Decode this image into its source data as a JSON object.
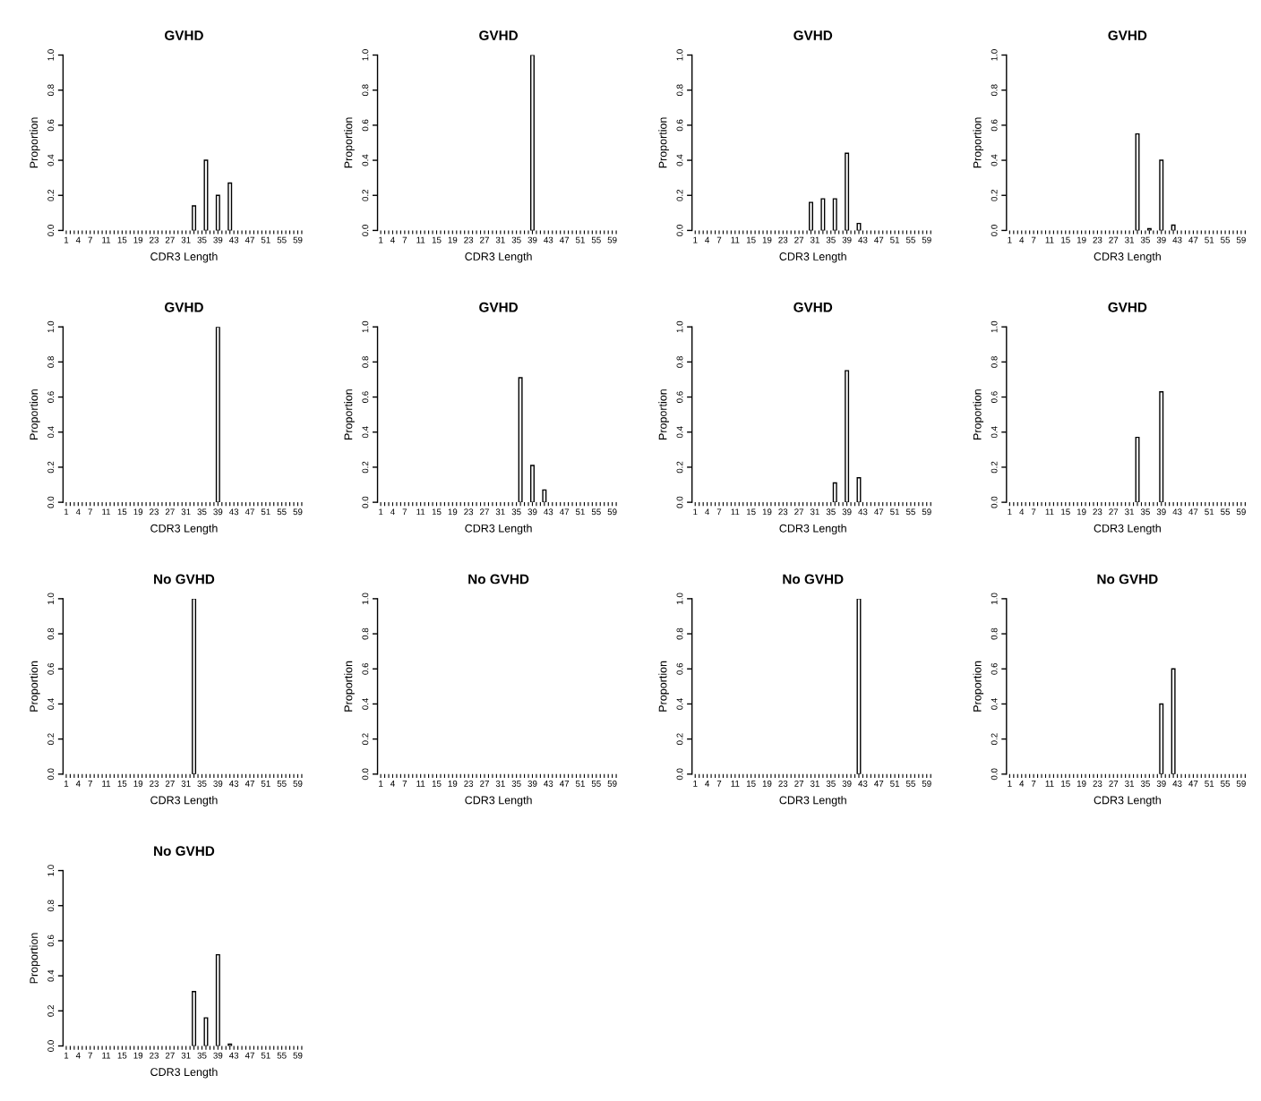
{
  "chart_data": [
    {
      "type": "bar",
      "title": "GVHD",
      "xlabel": "CDR3 Length",
      "ylabel": "Proportion",
      "color": "#ffffff",
      "ylim": [
        0,
        1
      ],
      "yticks": [
        {
          "value": 0,
          "label": "0.0"
        },
        {
          "value": 0.2,
          "label": "0.2"
        },
        {
          "value": 0.4,
          "label": "0.4"
        },
        {
          "value": 0.6,
          "label": "0.6"
        },
        {
          "value": 0.8,
          "label": "0.8"
        },
        {
          "value": 1,
          "label": "1.0"
        }
      ],
      "categories": [
        "1",
        null,
        null,
        "4",
        null,
        null,
        "7",
        null,
        null,
        null,
        "11",
        null,
        null,
        null,
        "15",
        null,
        null,
        null,
        "19",
        null,
        null,
        null,
        "23",
        null,
        null,
        null,
        "27",
        null,
        null,
        null,
        "31",
        null,
        null,
        null,
        "35",
        null,
        null,
        null,
        "39",
        null,
        null,
        null,
        "43",
        null,
        null,
        null,
        "47",
        null,
        null,
        null,
        "51",
        null,
        null,
        null,
        "55",
        null,
        null,
        null,
        "59",
        null
      ],
      "values": [
        0,
        0,
        0,
        0,
        0,
        0,
        0,
        0,
        0,
        0,
        0,
        0,
        0,
        0,
        0,
        0,
        0,
        0,
        0,
        0,
        0,
        0,
        0,
        0,
        0,
        0,
        0,
        0,
        0,
        0,
        0,
        0,
        0.14,
        0,
        0,
        0.4,
        0,
        0,
        0.2,
        0,
        0,
        0.27,
        0,
        0,
        0,
        0,
        0,
        0,
        0,
        0,
        0,
        0,
        0,
        0,
        0,
        0,
        0,
        0,
        0,
        0
      ]
    },
    {
      "type": "bar",
      "title": "GVHD",
      "xlabel": "CDR3 Length",
      "ylabel": "Proportion",
      "color": "#ffffff",
      "ylim": [
        0,
        1
      ],
      "yticks": [
        {
          "value": 0,
          "label": "0.0"
        },
        {
          "value": 0.2,
          "label": "0.2"
        },
        {
          "value": 0.4,
          "label": "0.4"
        },
        {
          "value": 0.6,
          "label": "0.6"
        },
        {
          "value": 0.8,
          "label": "0.8"
        },
        {
          "value": 1,
          "label": "1.0"
        }
      ],
      "categories": [
        "1",
        null,
        null,
        "4",
        null,
        null,
        "7",
        null,
        null,
        null,
        "11",
        null,
        null,
        null,
        "15",
        null,
        null,
        null,
        "19",
        null,
        null,
        null,
        "23",
        null,
        null,
        null,
        "27",
        null,
        null,
        null,
        "31",
        null,
        null,
        null,
        "35",
        null,
        null,
        null,
        "39",
        null,
        null,
        null,
        "43",
        null,
        null,
        null,
        "47",
        null,
        null,
        null,
        "51",
        null,
        null,
        null,
        "55",
        null,
        null,
        null,
        "59",
        null
      ],
      "values": [
        0,
        0,
        0,
        0,
        0,
        0,
        0,
        0,
        0,
        0,
        0,
        0,
        0,
        0,
        0,
        0,
        0,
        0,
        0,
        0,
        0,
        0,
        0,
        0,
        0,
        0,
        0,
        0,
        0,
        0,
        0,
        0,
        0,
        0,
        0,
        0,
        0,
        0,
        1,
        0,
        0,
        0,
        0,
        0,
        0,
        0,
        0,
        0,
        0,
        0,
        0,
        0,
        0,
        0,
        0,
        0,
        0,
        0,
        0,
        0
      ]
    },
    {
      "type": "bar",
      "title": "GVHD",
      "xlabel": "CDR3 Length",
      "ylabel": "Proportion",
      "color": "#ffffff",
      "ylim": [
        0,
        1
      ],
      "yticks": [
        {
          "value": 0,
          "label": "0.0"
        },
        {
          "value": 0.2,
          "label": "0.2"
        },
        {
          "value": 0.4,
          "label": "0.4"
        },
        {
          "value": 0.6,
          "label": "0.6"
        },
        {
          "value": 0.8,
          "label": "0.8"
        },
        {
          "value": 1,
          "label": "1.0"
        }
      ],
      "categories": [
        "1",
        null,
        null,
        "4",
        null,
        null,
        "7",
        null,
        null,
        null,
        "11",
        null,
        null,
        null,
        "15",
        null,
        null,
        null,
        "19",
        null,
        null,
        null,
        "23",
        null,
        null,
        null,
        "27",
        null,
        null,
        null,
        "31",
        null,
        null,
        null,
        "35",
        null,
        null,
        null,
        "39",
        null,
        null,
        null,
        "43",
        null,
        null,
        null,
        "47",
        null,
        null,
        null,
        "51",
        null,
        null,
        null,
        "55",
        null,
        null,
        null,
        "59",
        null
      ],
      "values": [
        0,
        0,
        0,
        0,
        0,
        0,
        0,
        0,
        0,
        0,
        0,
        0,
        0,
        0,
        0,
        0,
        0,
        0,
        0,
        0,
        0,
        0,
        0,
        0,
        0,
        0,
        0,
        0,
        0,
        0.16,
        0,
        0,
        0.18,
        0,
        0,
        0.18,
        0,
        0,
        0.44,
        0,
        0,
        0.04,
        0,
        0,
        0,
        0,
        0,
        0,
        0,
        0,
        0,
        0,
        0,
        0,
        0,
        0,
        0,
        0,
        0,
        0
      ]
    },
    {
      "type": "bar",
      "title": "GVHD",
      "xlabel": "CDR3 Length",
      "ylabel": "Proportion",
      "color": "#ffffff",
      "ylim": [
        0,
        1
      ],
      "yticks": [
        {
          "value": 0,
          "label": "0.0"
        },
        {
          "value": 0.2,
          "label": "0.2"
        },
        {
          "value": 0.4,
          "label": "0.4"
        },
        {
          "value": 0.6,
          "label": "0.6"
        },
        {
          "value": 0.8,
          "label": "0.8"
        },
        {
          "value": 1,
          "label": "1.0"
        }
      ],
      "categories": [
        "1",
        null,
        null,
        "4",
        null,
        null,
        "7",
        null,
        null,
        null,
        "11",
        null,
        null,
        null,
        "15",
        null,
        null,
        null,
        "19",
        null,
        null,
        null,
        "23",
        null,
        null,
        null,
        "27",
        null,
        null,
        null,
        "31",
        null,
        null,
        null,
        "35",
        null,
        null,
        null,
        "39",
        null,
        null,
        null,
        "43",
        null,
        null,
        null,
        "47",
        null,
        null,
        null,
        "51",
        null,
        null,
        null,
        "55",
        null,
        null,
        null,
        "59",
        null
      ],
      "values": [
        0,
        0,
        0,
        0,
        0,
        0,
        0,
        0,
        0,
        0,
        0,
        0,
        0,
        0,
        0,
        0,
        0,
        0,
        0,
        0,
        0,
        0,
        0,
        0,
        0,
        0,
        0,
        0,
        0,
        0,
        0,
        0,
        0.55,
        0,
        0,
        0.01,
        0,
        0,
        0.4,
        0,
        0,
        0.03,
        0,
        0,
        0,
        0,
        0,
        0,
        0,
        0,
        0,
        0,
        0,
        0,
        0,
        0,
        0,
        0,
        0,
        0
      ]
    },
    {
      "type": "bar",
      "title": "GVHD",
      "xlabel": "CDR3 Length",
      "ylabel": "Proportion",
      "color": "#ffffff",
      "ylim": [
        0,
        1
      ],
      "yticks": [
        {
          "value": 0,
          "label": "0.0"
        },
        {
          "value": 0.2,
          "label": "0.2"
        },
        {
          "value": 0.4,
          "label": "0.4"
        },
        {
          "value": 0.6,
          "label": "0.6"
        },
        {
          "value": 0.8,
          "label": "0.8"
        },
        {
          "value": 1,
          "label": "1.0"
        }
      ],
      "categories": [
        "1",
        null,
        null,
        "4",
        null,
        null,
        "7",
        null,
        null,
        null,
        "11",
        null,
        null,
        null,
        "15",
        null,
        null,
        null,
        "19",
        null,
        null,
        null,
        "23",
        null,
        null,
        null,
        "27",
        null,
        null,
        null,
        "31",
        null,
        null,
        null,
        "35",
        null,
        null,
        null,
        "39",
        null,
        null,
        null,
        "43",
        null,
        null,
        null,
        "47",
        null,
        null,
        null,
        "51",
        null,
        null,
        null,
        "55",
        null,
        null,
        null,
        "59",
        null
      ],
      "values": [
        0,
        0,
        0,
        0,
        0,
        0,
        0,
        0,
        0,
        0,
        0,
        0,
        0,
        0,
        0,
        0,
        0,
        0,
        0,
        0,
        0,
        0,
        0,
        0,
        0,
        0,
        0,
        0,
        0,
        0,
        0,
        0,
        0,
        0,
        0,
        0,
        0,
        0,
        1,
        0,
        0,
        0,
        0,
        0,
        0,
        0,
        0,
        0,
        0,
        0,
        0,
        0,
        0,
        0,
        0,
        0,
        0,
        0,
        0,
        0
      ]
    },
    {
      "type": "bar",
      "title": "GVHD",
      "xlabel": "CDR3 Length",
      "ylabel": "Proportion",
      "color": "#ffffff",
      "ylim": [
        0,
        1
      ],
      "yticks": [
        {
          "value": 0,
          "label": "0.0"
        },
        {
          "value": 0.2,
          "label": "0.2"
        },
        {
          "value": 0.4,
          "label": "0.4"
        },
        {
          "value": 0.6,
          "label": "0.6"
        },
        {
          "value": 0.8,
          "label": "0.8"
        },
        {
          "value": 1,
          "label": "1.0"
        }
      ],
      "categories": [
        "1",
        null,
        null,
        "4",
        null,
        null,
        "7",
        null,
        null,
        null,
        "11",
        null,
        null,
        null,
        "15",
        null,
        null,
        null,
        "19",
        null,
        null,
        null,
        "23",
        null,
        null,
        null,
        "27",
        null,
        null,
        null,
        "31",
        null,
        null,
        null,
        "35",
        null,
        null,
        null,
        "39",
        null,
        null,
        null,
        "43",
        null,
        null,
        null,
        "47",
        null,
        null,
        null,
        "51",
        null,
        null,
        null,
        "55",
        null,
        null,
        null,
        "59",
        null
      ],
      "values": [
        0,
        0,
        0,
        0,
        0,
        0,
        0,
        0,
        0,
        0,
        0,
        0,
        0,
        0,
        0,
        0,
        0,
        0,
        0,
        0,
        0,
        0,
        0,
        0,
        0,
        0,
        0,
        0,
        0,
        0,
        0,
        0,
        0,
        0,
        0,
        0.71,
        0,
        0,
        0.21,
        0,
        0,
        0.07,
        0,
        0,
        0,
        0,
        0,
        0,
        0,
        0,
        0,
        0,
        0,
        0,
        0,
        0,
        0,
        0,
        0,
        0
      ]
    },
    {
      "type": "bar",
      "title": "GVHD",
      "xlabel": "CDR3 Length",
      "ylabel": "Proportion",
      "color": "#ffffff",
      "ylim": [
        0,
        1
      ],
      "yticks": [
        {
          "value": 0,
          "label": "0.0"
        },
        {
          "value": 0.2,
          "label": "0.2"
        },
        {
          "value": 0.4,
          "label": "0.4"
        },
        {
          "value": 0.6,
          "label": "0.6"
        },
        {
          "value": 0.8,
          "label": "0.8"
        },
        {
          "value": 1,
          "label": "1.0"
        }
      ],
      "categories": [
        "1",
        null,
        null,
        "4",
        null,
        null,
        "7",
        null,
        null,
        null,
        "11",
        null,
        null,
        null,
        "15",
        null,
        null,
        null,
        "19",
        null,
        null,
        null,
        "23",
        null,
        null,
        null,
        "27",
        null,
        null,
        null,
        "31",
        null,
        null,
        null,
        "35",
        null,
        null,
        null,
        "39",
        null,
        null,
        null,
        "43",
        null,
        null,
        null,
        "47",
        null,
        null,
        null,
        "51",
        null,
        null,
        null,
        "55",
        null,
        null,
        null,
        "59",
        null
      ],
      "values": [
        0,
        0,
        0,
        0,
        0,
        0,
        0,
        0,
        0,
        0,
        0,
        0,
        0,
        0,
        0,
        0,
        0,
        0,
        0,
        0,
        0,
        0,
        0,
        0,
        0,
        0,
        0,
        0,
        0,
        0,
        0,
        0,
        0,
        0,
        0,
        0.11,
        0,
        0,
        0.75,
        0,
        0,
        0.14,
        0,
        0,
        0,
        0,
        0,
        0,
        0,
        0,
        0,
        0,
        0,
        0,
        0,
        0,
        0,
        0,
        0,
        0
      ]
    },
    {
      "type": "bar",
      "title": "GVHD",
      "xlabel": "CDR3 Length",
      "ylabel": "Proportion",
      "color": "#ffffff",
      "ylim": [
        0,
        1
      ],
      "yticks": [
        {
          "value": 0,
          "label": "0.0"
        },
        {
          "value": 0.2,
          "label": "0.2"
        },
        {
          "value": 0.4,
          "label": "0.4"
        },
        {
          "value": 0.6,
          "label": "0.6"
        },
        {
          "value": 0.8,
          "label": "0.8"
        },
        {
          "value": 1,
          "label": "1.0"
        }
      ],
      "categories": [
        "1",
        null,
        null,
        "4",
        null,
        null,
        "7",
        null,
        null,
        null,
        "11",
        null,
        null,
        null,
        "15",
        null,
        null,
        null,
        "19",
        null,
        null,
        null,
        "23",
        null,
        null,
        null,
        "27",
        null,
        null,
        null,
        "31",
        null,
        null,
        null,
        "35",
        null,
        null,
        null,
        "39",
        null,
        null,
        null,
        "43",
        null,
        null,
        null,
        "47",
        null,
        null,
        null,
        "51",
        null,
        null,
        null,
        "55",
        null,
        null,
        null,
        "59",
        null
      ],
      "values": [
        0,
        0,
        0,
        0,
        0,
        0,
        0,
        0,
        0,
        0,
        0,
        0,
        0,
        0,
        0,
        0,
        0,
        0,
        0,
        0,
        0,
        0,
        0,
        0,
        0,
        0,
        0,
        0,
        0,
        0,
        0,
        0,
        0.37,
        0,
        0,
        0,
        0,
        0,
        0.63,
        0,
        0,
        0,
        0,
        0,
        0,
        0,
        0,
        0,
        0,
        0,
        0,
        0,
        0,
        0,
        0,
        0,
        0,
        0,
        0,
        0
      ]
    },
    {
      "type": "bar",
      "title": "No GVHD",
      "xlabel": "CDR3 Length",
      "ylabel": "Proportion",
      "color": "#ffffff",
      "ylim": [
        0,
        1
      ],
      "yticks": [
        {
          "value": 0,
          "label": "0.0"
        },
        {
          "value": 0.2,
          "label": "0.2"
        },
        {
          "value": 0.4,
          "label": "0.4"
        },
        {
          "value": 0.6,
          "label": "0.6"
        },
        {
          "value": 0.8,
          "label": "0.8"
        },
        {
          "value": 1,
          "label": "1.0"
        }
      ],
      "categories": [
        "1",
        null,
        null,
        "4",
        null,
        null,
        "7",
        null,
        null,
        null,
        "11",
        null,
        null,
        null,
        "15",
        null,
        null,
        null,
        "19",
        null,
        null,
        null,
        "23",
        null,
        null,
        null,
        "27",
        null,
        null,
        null,
        "31",
        null,
        null,
        null,
        "35",
        null,
        null,
        null,
        "39",
        null,
        null,
        null,
        "43",
        null,
        null,
        null,
        "47",
        null,
        null,
        null,
        "51",
        null,
        null,
        null,
        "55",
        null,
        null,
        null,
        "59",
        null
      ],
      "values": [
        0,
        0,
        0,
        0,
        0,
        0,
        0,
        0,
        0,
        0,
        0,
        0,
        0,
        0,
        0,
        0,
        0,
        0,
        0,
        0,
        0,
        0,
        0,
        0,
        0,
        0,
        0,
        0,
        0,
        0,
        0,
        0,
        1,
        0,
        0,
        0,
        0,
        0,
        0,
        0,
        0,
        0,
        0,
        0,
        0,
        0,
        0,
        0,
        0,
        0,
        0,
        0,
        0,
        0,
        0,
        0,
        0,
        0,
        0,
        0
      ]
    },
    {
      "type": "bar",
      "title": "No GVHD",
      "xlabel": "CDR3 Length",
      "ylabel": "Proportion",
      "ylim": [
        0,
        1
      ],
      "yticks": [
        {
          "value": 0,
          "label": "0.0"
        },
        {
          "value": 0.2,
          "label": "0.2"
        },
        {
          "value": 0.4,
          "label": "0.4"
        },
        {
          "value": 0.6,
          "label": "0.6"
        },
        {
          "value": 0.8,
          "label": "0.8"
        },
        {
          "value": 1,
          "label": "1.0"
        }
      ],
      "categories": [
        "1",
        null,
        null,
        "4",
        null,
        null,
        "7",
        null,
        null,
        null,
        "11",
        null,
        null,
        null,
        "15",
        null,
        null,
        null,
        "19",
        null,
        null,
        null,
        "23",
        null,
        null,
        null,
        "27",
        null,
        null,
        null,
        "31",
        null,
        null,
        null,
        "35",
        null,
        null,
        null,
        "39",
        null,
        null,
        null,
        "43",
        null,
        null,
        null,
        "47",
        null,
        null,
        null,
        "51",
        null,
        null,
        null,
        "55",
        null,
        null,
        null,
        "59",
        null
      ],
      "values": [
        0,
        0,
        0,
        0,
        0,
        0,
        0,
        0,
        0,
        0,
        0,
        0,
        0,
        0,
        0,
        0,
        0,
        0,
        0,
        0,
        0,
        0,
        0,
        0,
        0,
        0,
        0,
        0,
        0,
        0,
        0,
        0,
        0,
        0,
        0,
        0,
        0,
        0,
        0,
        0,
        0,
        0,
        0,
        0,
        0,
        0,
        0,
        0,
        0,
        0,
        0,
        0,
        0,
        0,
        0,
        0,
        0,
        0,
        0,
        0
      ]
    },
    {
      "type": "bar",
      "title": "No GVHD",
      "xlabel": "CDR3 Length",
      "ylabel": "Proportion",
      "color": "#ffffff",
      "ylim": [
        0,
        1
      ],
      "yticks": [
        {
          "value": 0,
          "label": "0.0"
        },
        {
          "value": 0.2,
          "label": "0.2"
        },
        {
          "value": 0.4,
          "label": "0.4"
        },
        {
          "value": 0.6,
          "label": "0.6"
        },
        {
          "value": 0.8,
          "label": "0.8"
        },
        {
          "value": 1,
          "label": "1.0"
        }
      ],
      "categories": [
        "1",
        null,
        null,
        "4",
        null,
        null,
        "7",
        null,
        null,
        null,
        "11",
        null,
        null,
        null,
        "15",
        null,
        null,
        null,
        "19",
        null,
        null,
        null,
        "23",
        null,
        null,
        null,
        "27",
        null,
        null,
        null,
        "31",
        null,
        null,
        null,
        "35",
        null,
        null,
        null,
        "39",
        null,
        null,
        null,
        "43",
        null,
        null,
        null,
        "47",
        null,
        null,
        null,
        "51",
        null,
        null,
        null,
        "55",
        null,
        null,
        null,
        "59",
        null
      ],
      "values": [
        0,
        0,
        0,
        0,
        0,
        0,
        0,
        0,
        0,
        0,
        0,
        0,
        0,
        0,
        0,
        0,
        0,
        0,
        0,
        0,
        0,
        0,
        0,
        0,
        0,
        0,
        0,
        0,
        0,
        0,
        0,
        0,
        0,
        0,
        0,
        0,
        0,
        0,
        0,
        0,
        0,
        1,
        0,
        0,
        0,
        0,
        0,
        0,
        0,
        0,
        0,
        0,
        0,
        0,
        0,
        0,
        0,
        0,
        0,
        0
      ]
    },
    {
      "type": "bar",
      "title": "No GVHD",
      "xlabel": "CDR3 Length",
      "ylabel": "Proportion",
      "color": "#ffffff",
      "ylim": [
        0,
        1
      ],
      "yticks": [
        {
          "value": 0,
          "label": "0.0"
        },
        {
          "value": 0.2,
          "label": "0.2"
        },
        {
          "value": 0.4,
          "label": "0.4"
        },
        {
          "value": 0.6,
          "label": "0.6"
        },
        {
          "value": 0.8,
          "label": "0.8"
        },
        {
          "value": 1,
          "label": "1.0"
        }
      ],
      "categories": [
        "1",
        null,
        null,
        "4",
        null,
        null,
        "7",
        null,
        null,
        null,
        "11",
        null,
        null,
        null,
        "15",
        null,
        null,
        null,
        "19",
        null,
        null,
        null,
        "23",
        null,
        null,
        null,
        "27",
        null,
        null,
        null,
        "31",
        null,
        null,
        null,
        "35",
        null,
        null,
        null,
        "39",
        null,
        null,
        null,
        "43",
        null,
        null,
        null,
        "47",
        null,
        null,
        null,
        "51",
        null,
        null,
        null,
        "55",
        null,
        null,
        null,
        "59",
        null
      ],
      "values": [
        0,
        0,
        0,
        0,
        0,
        0,
        0,
        0,
        0,
        0,
        0,
        0,
        0,
        0,
        0,
        0,
        0,
        0,
        0,
        0,
        0,
        0,
        0,
        0,
        0,
        0,
        0,
        0,
        0,
        0,
        0,
        0,
        0,
        0,
        0,
        0,
        0,
        0,
        0.4,
        0,
        0,
        0.6,
        0,
        0,
        0,
        0,
        0,
        0,
        0,
        0,
        0,
        0,
        0,
        0,
        0,
        0,
        0,
        0,
        0,
        0
      ]
    },
    {
      "type": "bar",
      "title": "No GVHD",
      "xlabel": "CDR3 Length",
      "ylabel": "Proportion",
      "color": "#ffffff",
      "ylim": [
        0,
        1
      ],
      "yticks": [
        {
          "value": 0,
          "label": "0.0"
        },
        {
          "value": 0.2,
          "label": "0.2"
        },
        {
          "value": 0.4,
          "label": "0.4"
        },
        {
          "value": 0.6,
          "label": "0.6"
        },
        {
          "value": 0.8,
          "label": "0.8"
        },
        {
          "value": 1,
          "label": "1.0"
        }
      ],
      "categories": [
        "1",
        null,
        null,
        "4",
        null,
        null,
        "7",
        null,
        null,
        null,
        "11",
        null,
        null,
        null,
        "15",
        null,
        null,
        null,
        "19",
        null,
        null,
        null,
        "23",
        null,
        null,
        null,
        "27",
        null,
        null,
        null,
        "31",
        null,
        null,
        null,
        "35",
        null,
        null,
        null,
        "39",
        null,
        null,
        null,
        "43",
        null,
        null,
        null,
        "47",
        null,
        null,
        null,
        "51",
        null,
        null,
        null,
        "55",
        null,
        null,
        null,
        "59",
        null
      ],
      "values": [
        0,
        0,
        0,
        0,
        0,
        0,
        0,
        0,
        0,
        0,
        0,
        0,
        0,
        0,
        0,
        0,
        0,
        0,
        0,
        0,
        0,
        0,
        0,
        0,
        0,
        0,
        0,
        0,
        0,
        0,
        0,
        0,
        0.31,
        0,
        0,
        0.16,
        0,
        0,
        0.52,
        0,
        0,
        0.01,
        0,
        0,
        0,
        0,
        0,
        0,
        0,
        0,
        0,
        0,
        0,
        0,
        0,
        0,
        0,
        0,
        0,
        0
      ]
    }
  ]
}
